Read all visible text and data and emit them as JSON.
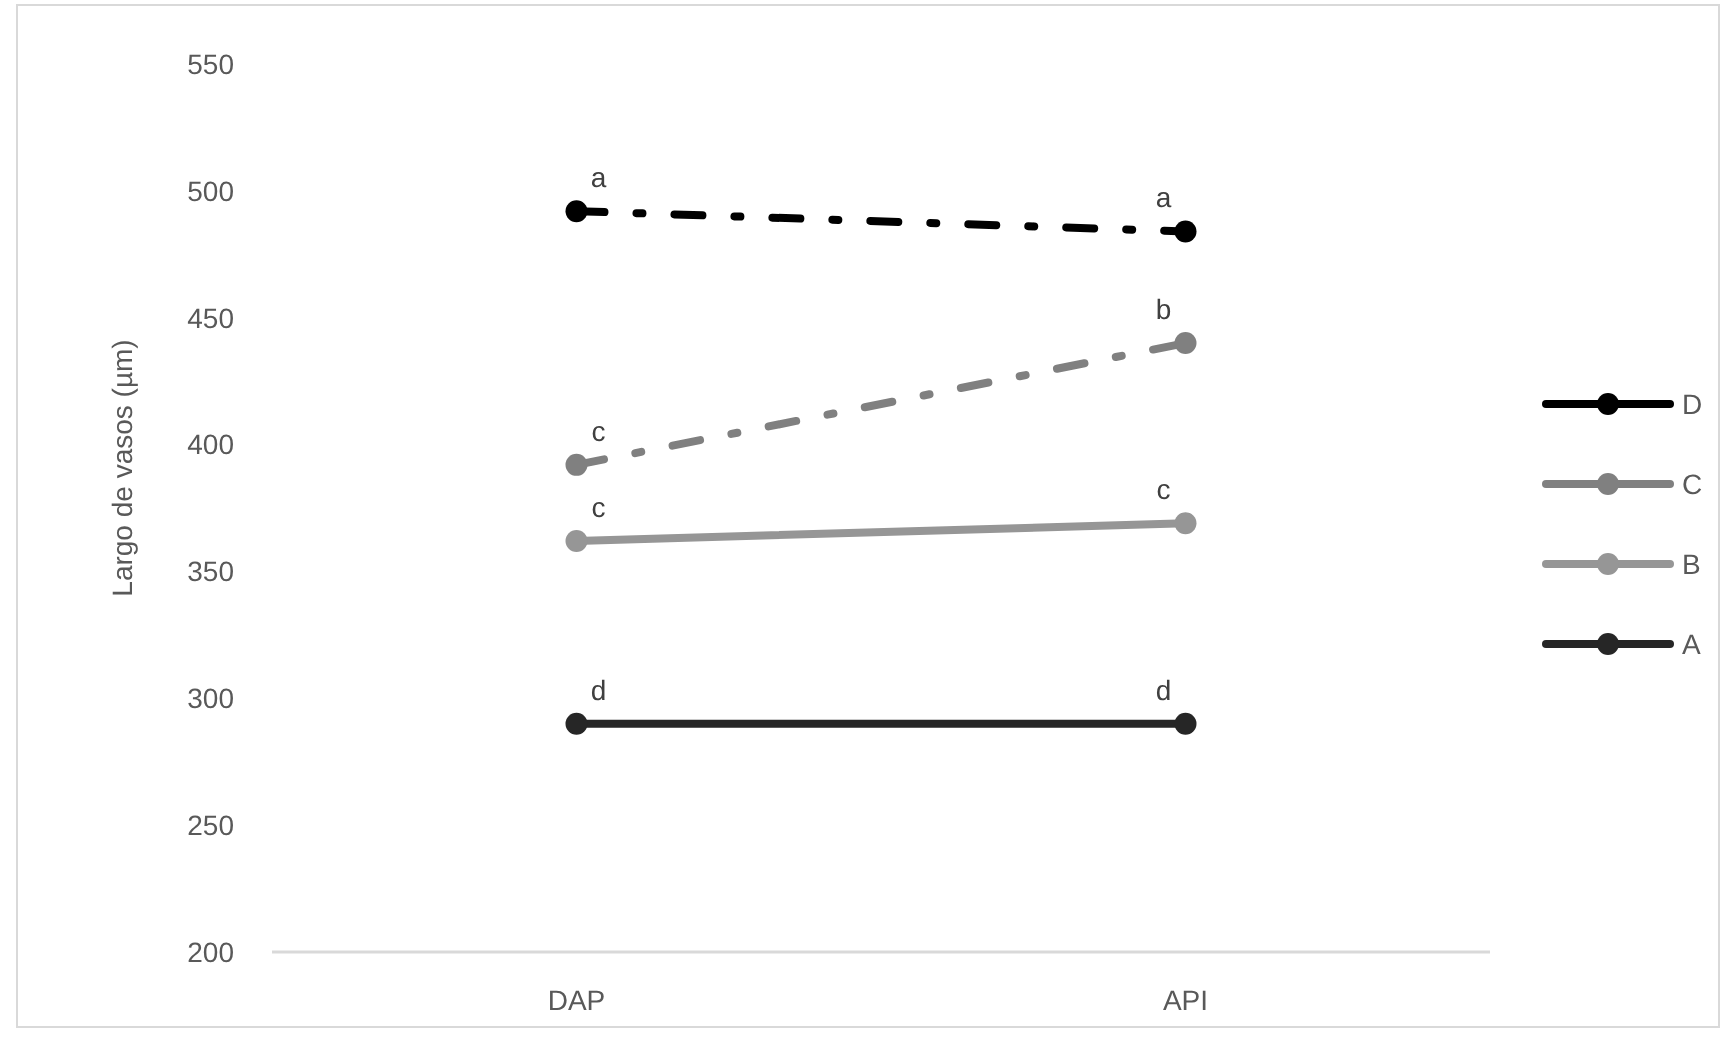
{
  "chart_data": {
    "type": "line",
    "ylabel": "Largo de vasos (µm)",
    "categories": [
      "DAP",
      "API"
    ],
    "ylim": [
      200,
      550
    ],
    "yticks": [
      200,
      250,
      300,
      350,
      400,
      450,
      500,
      550
    ],
    "legend": "right",
    "marker": "circle",
    "series": [
      {
        "name": "D",
        "color": "#000000",
        "values": [
          492,
          484
        ],
        "line_style": "dashed"
      },
      {
        "name": "C",
        "color": "#808080",
        "values": [
          392,
          440
        ],
        "line_style": "dashed"
      },
      {
        "name": "B",
        "color": "#969696",
        "values": [
          362,
          369
        ],
        "line_style": "solid"
      },
      {
        "name": "A",
        "color": "#262626",
        "values": [
          290,
          290
        ],
        "line_style": "solid"
      }
    ],
    "annotations": [
      {
        "text": "a",
        "x": "DAP",
        "y": 492
      },
      {
        "text": "a",
        "x": "API",
        "y": 484
      },
      {
        "text": "c",
        "x": "DAP",
        "y": 392
      },
      {
        "text": "b",
        "x": "API",
        "y": 440
      },
      {
        "text": "c",
        "x": "DAP",
        "y": 362
      },
      {
        "text": "c",
        "x": "API",
        "y": 369
      },
      {
        "text": "d",
        "x": "DAP",
        "y": 290
      },
      {
        "text": "d",
        "x": "API",
        "y": 290
      }
    ]
  }
}
